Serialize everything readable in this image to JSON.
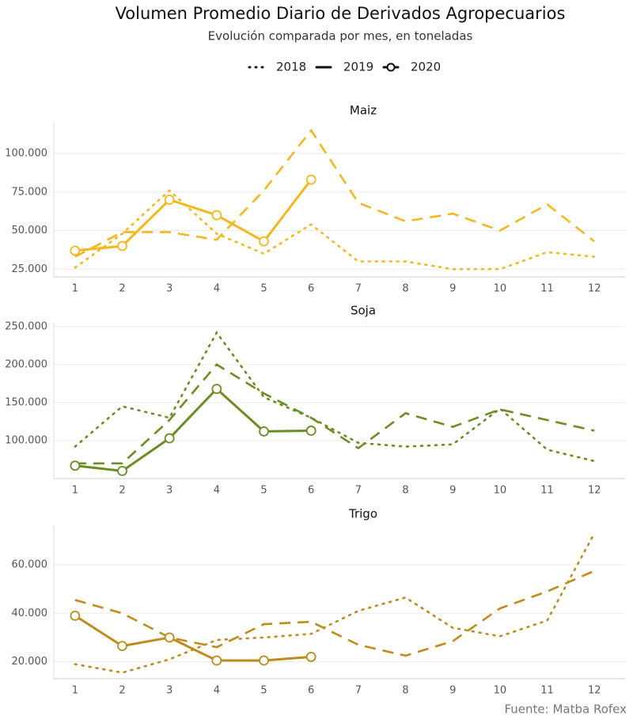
{
  "title": "Volumen Promedio Diario de Derivados Agropecuarios",
  "subtitle": "Evolución comparada por mes, en toneladas",
  "caption": "Fuente: Matba Rofex",
  "chart_data": [
    {
      "type": "line",
      "title": "Maiz",
      "color": "#f5b61e",
      "x": [
        1,
        2,
        3,
        4,
        5,
        6,
        7,
        8,
        9,
        10,
        11,
        12
      ],
      "xlim": [
        0.55,
        12.65
      ],
      "ylim": [
        20000,
        120000
      ],
      "yticks": [
        {
          "value": 25000,
          "label": "25.000"
        },
        {
          "value": 50000,
          "label": "50.000"
        },
        {
          "value": 75000,
          "label": "75.000"
        },
        {
          "value": 100000,
          "label": "100.000"
        }
      ],
      "grid": true,
      "series": [
        {
          "name": "2018",
          "linetype": "dotted",
          "values": [
            26000,
            48000,
            76000,
            48000,
            35000,
            54000,
            30000,
            30000,
            25000,
            25000,
            36000,
            33000
          ]
        },
        {
          "name": "2019",
          "linetype": "dashed",
          "values": [
            33000,
            49000,
            49000,
            44000,
            76000,
            115000,
            68000,
            56000,
            61000,
            50000,
            67000,
            43000
          ]
        },
        {
          "name": "2020",
          "linetype": "solid",
          "markers": true,
          "values": [
            37000,
            40000,
            70000,
            60000,
            43000,
            83000,
            null,
            null,
            null,
            null,
            null,
            null
          ]
        }
      ]
    },
    {
      "type": "line",
      "title": "Soja",
      "color": "#6b8e23",
      "x": [
        1,
        2,
        3,
        4,
        5,
        6,
        7,
        8,
        9,
        10,
        11,
        12
      ],
      "xlim": [
        0.55,
        12.65
      ],
      "ylim": [
        50000,
        255000
      ],
      "yticks": [
        {
          "value": 100000,
          "label": "100.000"
        },
        {
          "value": 150000,
          "label": "150.000"
        },
        {
          "value": 200000,
          "label": "200.000"
        },
        {
          "value": 250000,
          "label": "250.000"
        }
      ],
      "grid": true,
      "series": [
        {
          "name": "2018",
          "linetype": "dotted",
          "values": [
            92000,
            145000,
            130000,
            242000,
            157000,
            130000,
            97000,
            92000,
            95000,
            142000,
            88000,
            73000
          ]
        },
        {
          "name": "2019",
          "linetype": "dashed",
          "values": [
            70000,
            70000,
            127000,
            200000,
            162000,
            130000,
            90000,
            136000,
            118000,
            141000,
            127000,
            113000
          ]
        },
        {
          "name": "2020",
          "linetype": "solid",
          "markers": true,
          "values": [
            67000,
            60000,
            103000,
            168000,
            112000,
            113000,
            null,
            null,
            null,
            null,
            null,
            null
          ]
        }
      ]
    },
    {
      "type": "line",
      "title": "Trigo",
      "color": "#bf8c1c",
      "x": [
        1,
        2,
        3,
        4,
        5,
        6,
        7,
        8,
        9,
        10,
        11,
        12
      ],
      "xlim": [
        0.55,
        12.65
      ],
      "ylim": [
        13000,
        76000
      ],
      "yticks": [
        {
          "value": 20000,
          "label": "20.000"
        },
        {
          "value": 40000,
          "label": "40.000"
        },
        {
          "value": 60000,
          "label": "60.000"
        }
      ],
      "grid": true,
      "series": [
        {
          "name": "2018",
          "linetype": "dotted",
          "values": [
            19000,
            15500,
            21000,
            29000,
            30000,
            31500,
            41000,
            46500,
            34000,
            30500,
            37000,
            73000
          ]
        },
        {
          "name": "2019",
          "linetype": "dashed",
          "values": [
            45500,
            40000,
            30000,
            26000,
            35500,
            36500,
            27000,
            22500,
            28500,
            42000,
            49000,
            57500
          ]
        },
        {
          "name": "2020",
          "linetype": "solid",
          "markers": true,
          "values": [
            39000,
            26500,
            30000,
            20500,
            20500,
            22000,
            null,
            null,
            null,
            null,
            null,
            null
          ]
        }
      ]
    }
  ]
}
